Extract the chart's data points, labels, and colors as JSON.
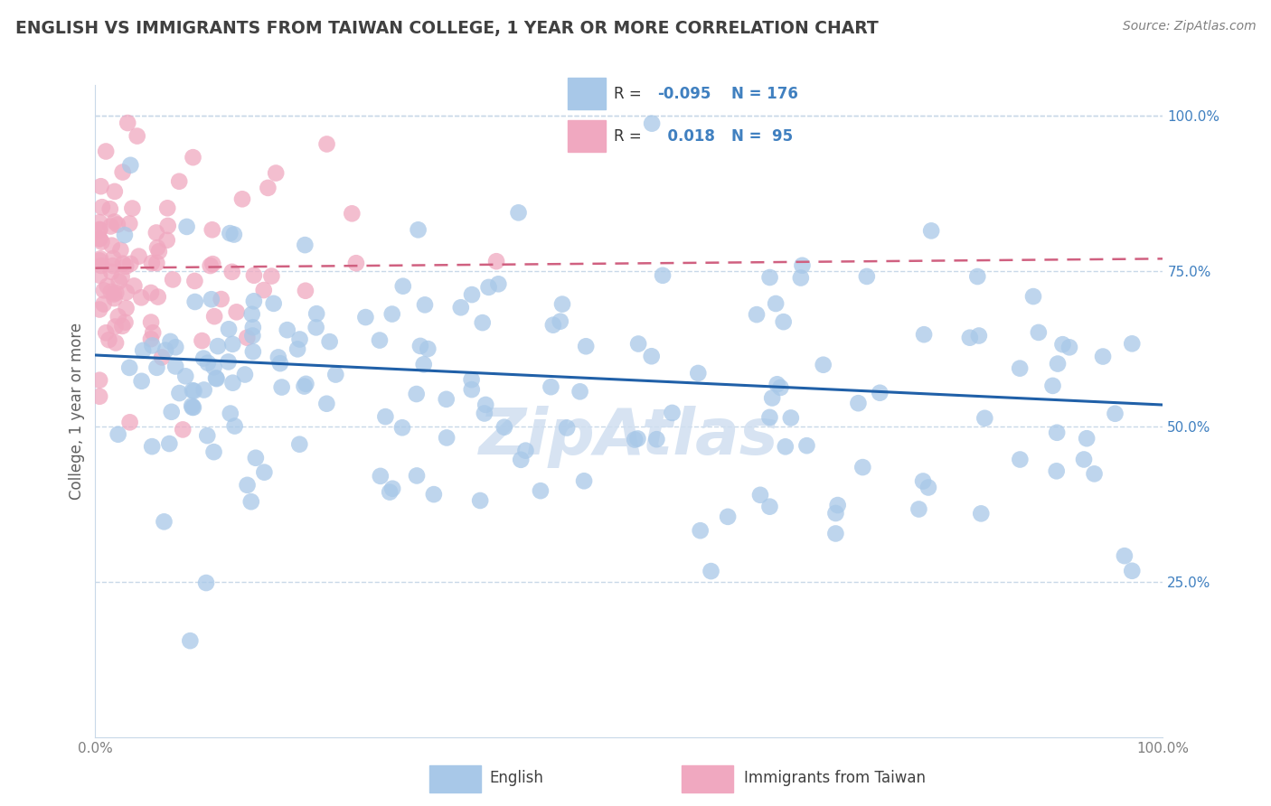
{
  "title": "ENGLISH VS IMMIGRANTS FROM TAIWAN COLLEGE, 1 YEAR OR MORE CORRELATION CHART",
  "source": "Source: ZipAtlas.com",
  "xlabel_blue": "English",
  "xlabel_pink": "Immigrants from Taiwan",
  "ylabel": "College, 1 year or more",
  "blue_R": -0.095,
  "blue_N": 176,
  "pink_R": 0.018,
  "pink_N": 95,
  "blue_color": "#a8c8e8",
  "pink_color": "#f0a8c0",
  "blue_line_color": "#2060a8",
  "pink_line_color": "#d06080",
  "legend_value_color": "#4080c0",
  "background_color": "#ffffff",
  "grid_color": "#c8d8e8",
  "title_color": "#404040",
  "source_color": "#808080",
  "ylabel_color": "#606060",
  "ytick_color": "#4080c0",
  "xtick_color": "#808080",
  "watermark_color": "#d0dff0",
  "xlim": [
    0.0,
    1.0
  ],
  "ylim": [
    0.0,
    1.05
  ],
  "blue_trend_x": [
    0.0,
    1.0
  ],
  "blue_trend_y": [
    0.615,
    0.535
  ],
  "pink_trend_x": [
    0.0,
    1.0
  ],
  "pink_trend_y": [
    0.755,
    0.77
  ]
}
